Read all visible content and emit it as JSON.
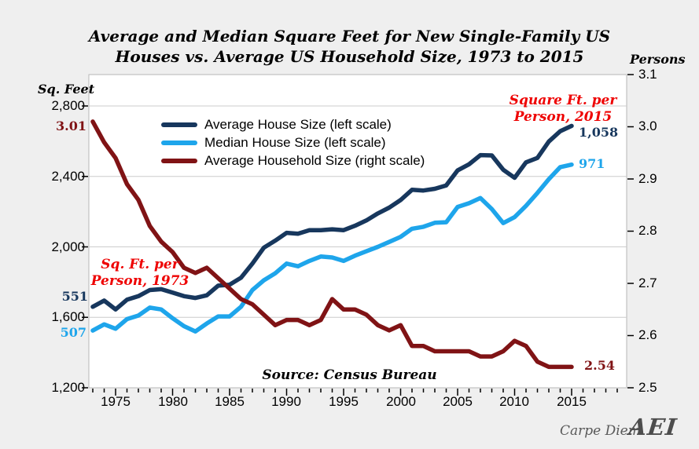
{
  "title": {
    "lines": [
      "Average and Median Square Feet for New Single-Family US",
      "Houses vs. Average US Household Size, 1973 to 2015"
    ]
  },
  "axes": {
    "left": {
      "title": "Sq. Feet",
      "ticks": [
        "2,800",
        "2,400",
        "2,000",
        "1,600",
        "1,200"
      ]
    },
    "right": {
      "title": "Persons",
      "ticks": [
        "3.1",
        "3.0",
        "2.9",
        "2.8",
        "2.7",
        "2.6",
        "2.5"
      ]
    },
    "x": {
      "ticks": [
        "1975",
        "1980",
        "1985",
        "1990",
        "1995",
        "2000",
        "2005",
        "2010",
        "2015"
      ]
    }
  },
  "legend": [
    {
      "label": "Average House Size (left scale)",
      "color": "#17375d"
    },
    {
      "label": "Median House Size (left scale)",
      "color": "#1ea5eb"
    },
    {
      "label": "Average Household Size (right scale)",
      "color": "#801315"
    }
  ],
  "annotations": {
    "household_1973": "3.01",
    "household_2015": "2.54",
    "avg_start": "551",
    "median_start": "507",
    "avg_end": "1,058",
    "median_end": "971",
    "note_1973": {
      "lines": [
        "Sq. Ft. per",
        "Person, 1973"
      ]
    },
    "note_2015": {
      "lines": [
        "Square Ft. per",
        "Person, 2015"
      ]
    }
  },
  "source": "Source: Census Bureau",
  "branding": {
    "carpe_diem": "Carpe Diem",
    "aei": "AEI"
  },
  "colors": {
    "background": "#efefef",
    "plot_background": "#ffffff",
    "plot_border": "#b7b7b7",
    "gridline": "#cccccc",
    "avg_line": "#17375d",
    "median_line": "#1ea5eb",
    "household_line": "#801315",
    "red_annotation": "#ee0000",
    "tick": "#000000"
  },
  "chart_data": {
    "type": "line",
    "title": "Average and Median Square Feet for New Single-Family US Houses vs. Average US Household Size, 1973 to 2015",
    "x_start_year": 1973,
    "x_end_year": 2015,
    "x_axis": {
      "labeled_ticks": [
        1975,
        1980,
        1985,
        1990,
        1995,
        2000,
        2005,
        2010,
        2015
      ],
      "minor_tick_every_year": true,
      "last_minor_tick_year": 2019
    },
    "left_axis": {
      "label": "Sq. Feet",
      "range": [
        1200,
        2800
      ],
      "tick_step": 400
    },
    "right_axis": {
      "label": "Persons",
      "range": [
        2.5,
        3.1
      ],
      "tick_step": 0.1
    },
    "grid": "horizontal-major-left-axis",
    "legend_position": "top-left-inside",
    "series": [
      {
        "name": "Average House Size (left scale)",
        "scale": "left",
        "color": "#17375d",
        "values": [
          1660,
          1695,
          1645,
          1700,
          1720,
          1755,
          1760,
          1740,
          1720,
          1710,
          1725,
          1780,
          1785,
          1825,
          1905,
          1995,
          2035,
          2080,
          2075,
          2095,
          2095,
          2100,
          2095,
          2120,
          2150,
          2190,
          2223,
          2266,
          2324,
          2320,
          2330,
          2349,
          2434,
          2469,
          2521,
          2519,
          2438,
          2392,
          2480,
          2505,
          2598,
          2657,
          2687
        ]
      },
      {
        "name": "Median House Size (left scale)",
        "scale": "left",
        "color": "#1ea5eb",
        "values": [
          1525,
          1560,
          1535,
          1590,
          1610,
          1655,
          1645,
          1595,
          1550,
          1520,
          1565,
          1605,
          1605,
          1660,
          1755,
          1810,
          1850,
          1905,
          1890,
          1920,
          1945,
          1940,
          1920,
          1950,
          1975,
          2000,
          2028,
          2057,
          2103,
          2114,
          2137,
          2140,
          2227,
          2248,
          2277,
          2215,
          2135,
          2169,
          2233,
          2306,
          2384,
          2453,
          2467
        ]
      },
      {
        "name": "Average Household Size (right scale)",
        "scale": "right",
        "color": "#801315",
        "values": [
          3.01,
          2.97,
          2.94,
          2.89,
          2.86,
          2.81,
          2.78,
          2.76,
          2.73,
          2.72,
          2.73,
          2.71,
          2.69,
          2.67,
          2.66,
          2.64,
          2.62,
          2.63,
          2.63,
          2.62,
          2.63,
          2.67,
          2.65,
          2.65,
          2.64,
          2.62,
          2.61,
          2.62,
          2.58,
          2.58,
          2.57,
          2.57,
          2.57,
          2.57,
          2.56,
          2.56,
          2.57,
          2.59,
          2.58,
          2.55,
          2.54,
          2.54,
          2.54
        ]
      }
    ]
  }
}
